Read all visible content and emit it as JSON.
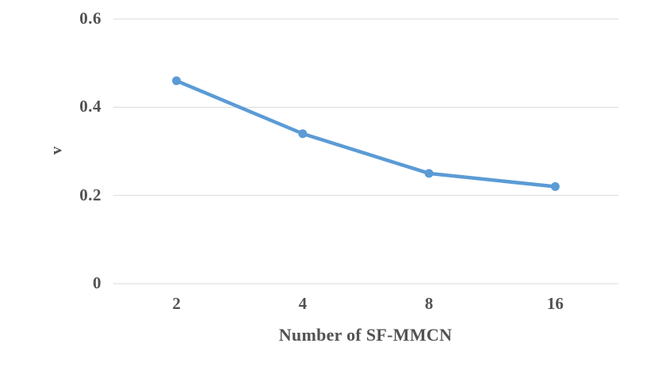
{
  "chart_data": {
    "type": "line",
    "categories": [
      "2",
      "4",
      "8",
      "16"
    ],
    "series": [
      {
        "name": "v",
        "values": [
          0.46,
          0.34,
          0.25,
          0.22
        ]
      }
    ],
    "title": "",
    "xlabel": "Number of SF-MMCN",
    "ylabel": "v",
    "ylim": [
      0,
      0.6
    ],
    "yticks": [
      0,
      0.2,
      0.4,
      0.6
    ],
    "ytick_labels": [
      "0",
      "0.2",
      "0.4",
      "0.6"
    ],
    "grid": true,
    "legend_position": "none",
    "marker": "circle",
    "line_color": "#5B9BD5",
    "gridline_color": "#D9D9D9",
    "text_color": "#525252",
    "background_color": "#FFFFFF"
  }
}
